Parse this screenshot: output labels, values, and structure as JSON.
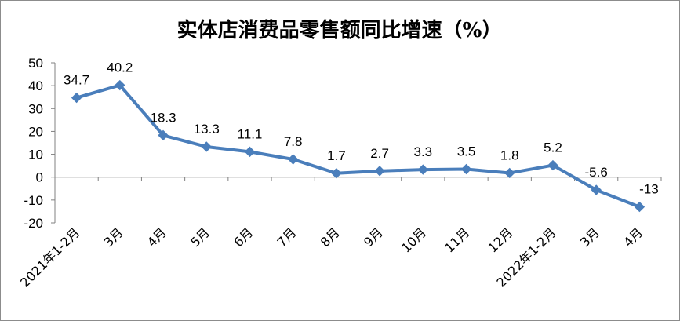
{
  "chart_data": {
    "type": "line",
    "title": "实体店消费品零售额同比增速（%）",
    "xlabel": "",
    "ylabel": "",
    "categories": [
      "2021年1-2月",
      "3月",
      "4月",
      "5月",
      "6月",
      "7月",
      "8月",
      "9月",
      "10月",
      "11月",
      "12月",
      "2022年1-2月",
      "3月",
      "4月"
    ],
    "series": [
      {
        "values": [
          34.7,
          40.2,
          18.3,
          13.3,
          11.1,
          7.8,
          1.7,
          2.7,
          3.3,
          3.5,
          1.8,
          5.2,
          -5.6,
          -13
        ],
        "labels": [
          "34.7",
          "40.2",
          "18.3",
          "13.3",
          "11.1",
          "7.8",
          "1.7",
          "2.7",
          "3.3",
          "3.5",
          "1.8",
          "5.2",
          "-5.6",
          "-13"
        ],
        "color": "#4a7ebb"
      }
    ],
    "ylim": [
      -20,
      50
    ],
    "yticks": [
      50,
      40,
      30,
      20,
      10,
      0,
      -10,
      -20
    ],
    "grid": false,
    "legend": "none"
  }
}
